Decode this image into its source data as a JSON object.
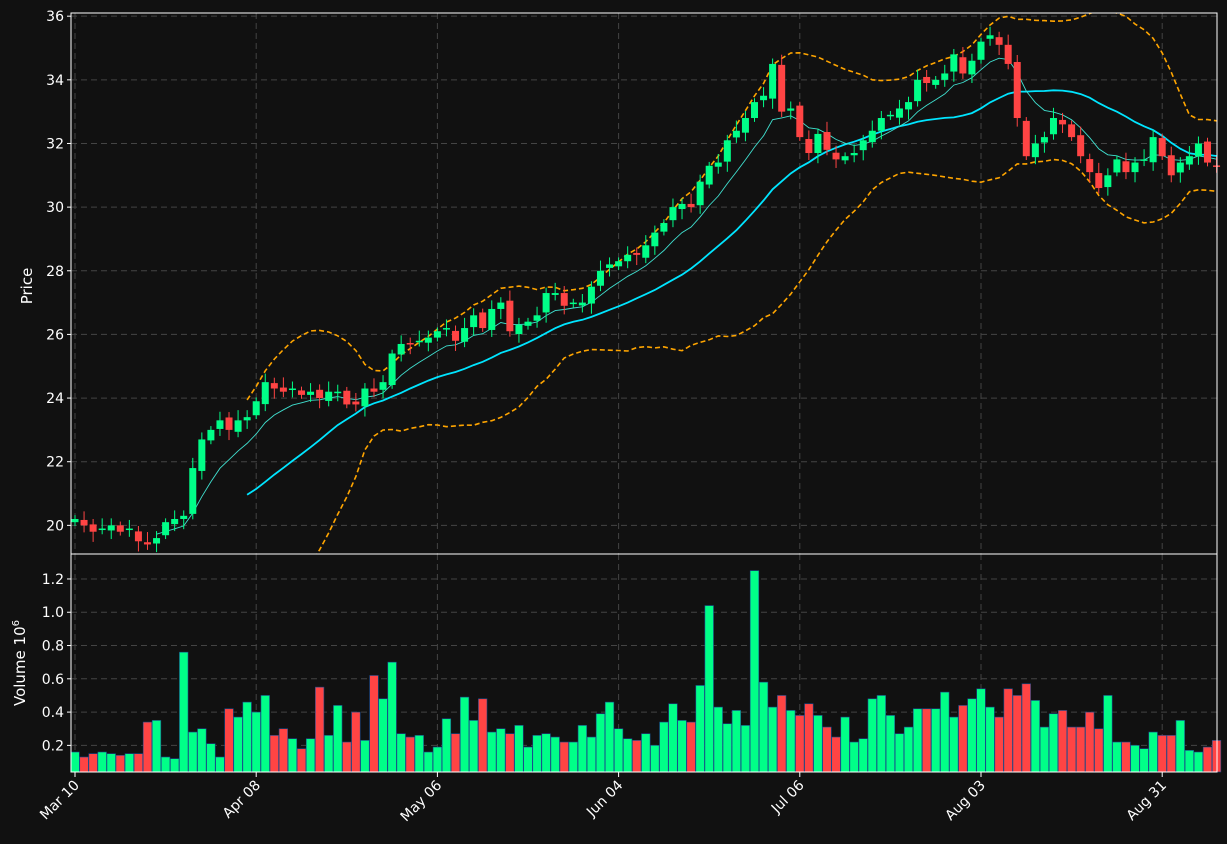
{
  "chart_data": [
    {
      "type": "candlestick",
      "ylabel": "Price",
      "ylim": [
        19.1,
        36.1
      ],
      "yticks": [
        20,
        22,
        24,
        26,
        28,
        30,
        32,
        34,
        36
      ],
      "xtick_labels": [
        {
          "label": "Mar 10",
          "index": 0
        },
        {
          "label": "Apr 08",
          "index": 20
        },
        {
          "label": "May 06",
          "index": 40
        },
        {
          "label": "Jun 04",
          "index": 60
        },
        {
          "label": "Jul 06",
          "index": 80
        },
        {
          "label": "Aug 03",
          "index": 100
        },
        {
          "label": "Aug 31",
          "index": 120
        }
      ],
      "grid": true,
      "colors": {
        "up": "#00ff88",
        "down": "#ff4444",
        "ma_fast": "#40e0d0",
        "ma_slow": "#00e5ff",
        "bands": "#ffa500",
        "background": "#111111",
        "grid": "#444444"
      },
      "close": [
        20.2,
        20.0,
        19.8,
        19.9,
        20.0,
        19.8,
        19.9,
        19.5,
        19.4,
        19.6,
        20.1,
        20.2,
        20.3,
        21.8,
        22.7,
        23.0,
        23.3,
        23.0,
        23.3,
        23.4,
        23.9,
        24.5,
        24.3,
        24.2,
        24.3,
        24.1,
        24.2,
        24.0,
        24.2,
        24.2,
        23.8,
        23.8,
        24.3,
        24.2,
        24.5,
        25.4,
        25.7,
        25.7,
        25.8,
        25.9,
        26.1,
        26.2,
        25.8,
        26.2,
        26.6,
        26.2,
        26.8,
        27.0,
        26.1,
        26.3,
        26.4,
        26.6,
        27.3,
        27.3,
        26.9,
        27.0,
        27.0,
        27.5,
        28.0,
        28.2,
        28.3,
        28.5,
        28.5,
        28.8,
        29.2,
        29.5,
        30.0,
        30.1,
        30.0,
        30.8,
        31.3,
        31.4,
        32.1,
        32.4,
        32.8,
        33.3,
        33.5,
        34.5,
        33.0,
        33.1,
        32.2,
        31.7,
        32.3,
        31.8,
        31.5,
        31.6,
        31.7,
        32.1,
        32.4,
        32.8,
        32.9,
        33.1,
        33.3,
        34.0,
        33.9,
        34.0,
        34.2,
        34.8,
        34.2,
        34.6,
        35.2,
        35.4,
        35.1,
        34.5,
        32.8,
        31.6,
        32.0,
        32.2,
        32.8,
        32.6,
        32.2,
        31.6,
        31.1,
        30.6,
        31.0,
        31.5,
        31.1,
        31.4,
        31.5,
        32.2,
        31.6,
        31.0,
        31.4,
        31.6,
        32.0,
        31.4,
        31.3
      ],
      "volume_ylabel": "Volume  10",
      "volume_exponent": "6",
      "volume_yticks": [
        0.2,
        0.4,
        0.6,
        0.8,
        1.0,
        1.2
      ],
      "volume_ylim": [
        0.04,
        1.35
      ],
      "volume": [
        0.16,
        0.13,
        0.15,
        0.16,
        0.15,
        0.14,
        0.15,
        0.15,
        0.34,
        0.35,
        0.13,
        0.12,
        0.76,
        0.28,
        0.3,
        0.21,
        0.13,
        0.42,
        0.37,
        0.46,
        0.4,
        0.5,
        0.26,
        0.3,
        0.24,
        0.18,
        0.24,
        0.55,
        0.26,
        0.44,
        0.22,
        0.4,
        0.23,
        0.62,
        0.48,
        0.7,
        0.27,
        0.25,
        0.26,
        0.16,
        0.19,
        0.36,
        0.27,
        0.49,
        0.35,
        0.48,
        0.28,
        0.3,
        0.27,
        0.32,
        0.19,
        0.26,
        0.27,
        0.25,
        0.22,
        0.22,
        0.32,
        0.25,
        0.39,
        0.46,
        0.3,
        0.24,
        0.23,
        0.27,
        0.2,
        0.34,
        0.45,
        0.35,
        0.34,
        0.56,
        1.04,
        0.43,
        0.33,
        0.41,
        0.32,
        1.25,
        0.58,
        0.43,
        0.5,
        0.41,
        0.38,
        0.45,
        0.38,
        0.31,
        0.25,
        0.37,
        0.22,
        0.24,
        0.48,
        0.5,
        0.38,
        0.27,
        0.31,
        0.42,
        0.42,
        0.42,
        0.52,
        0.37,
        0.44,
        0.48,
        0.54,
        0.43,
        0.37,
        0.54,
        0.5,
        0.57,
        0.47,
        0.31,
        0.39,
        0.41,
        0.31,
        0.31,
        0.4,
        0.3,
        0.5,
        0.22,
        0.22,
        0.2,
        0.18,
        0.28,
        0.26,
        0.26,
        0.35,
        0.17,
        0.16,
        0.19,
        0.23
      ]
    }
  ]
}
